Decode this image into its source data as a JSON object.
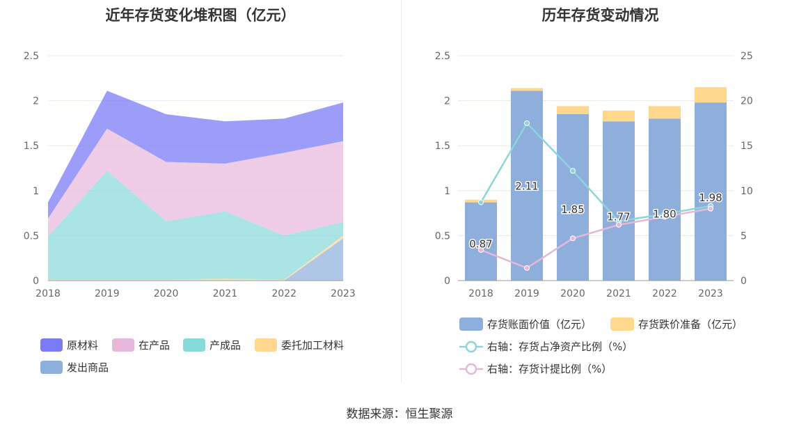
{
  "chart_data": [
    {
      "type": "area",
      "title": "近年存货变化堆积图（亿元）",
      "categories": [
        "2018",
        "2019",
        "2020",
        "2021",
        "2022",
        "2023"
      ],
      "ylim": [
        0,
        2.5
      ],
      "yticks": [
        "0",
        "0.5",
        "1",
        "1.5",
        "2",
        "2.5"
      ],
      "stacked": true,
      "series": [
        {
          "name": "发出商品",
          "color": "#8eaedc",
          "values": [
            0,
            0,
            0,
            0,
            0,
            0.47
          ]
        },
        {
          "name": "委托加工材料",
          "color": "#ffd88e",
          "values": [
            0.01,
            0.01,
            0.01,
            0.02,
            0.01,
            0.03
          ]
        },
        {
          "name": "产成品",
          "color": "#88d9d9",
          "values": [
            0.48,
            1.21,
            0.65,
            0.75,
            0.49,
            0.15
          ]
        },
        {
          "name": "在产品",
          "color": "#e8b8dc",
          "values": [
            0.2,
            0.47,
            0.66,
            0.53,
            0.92,
            0.9
          ]
        },
        {
          "name": "原材料",
          "color": "#7b7cf5",
          "values": [
            0.18,
            0.42,
            0.53,
            0.47,
            0.38,
            0.43
          ]
        }
      ],
      "legend": [
        "原材料",
        "在产品",
        "产成品",
        "委托加工材料",
        "发出商品"
      ]
    },
    {
      "type": "bar",
      "title": "历年存货变动情况",
      "categories": [
        "2018",
        "2019",
        "2020",
        "2021",
        "2022",
        "2023"
      ],
      "ylim": [
        0,
        2.5
      ],
      "yticks": [
        "0",
        "0.5",
        "1",
        "1.5",
        "2",
        "2.5"
      ],
      "y2lim": [
        0,
        25
      ],
      "y2ticks": [
        "0",
        "5",
        "10",
        "15",
        "20",
        "25"
      ],
      "series": [
        {
          "name": "存货账面价值（亿元）",
          "kind": "bar",
          "color": "#8eaedc",
          "values": [
            0.87,
            2.11,
            1.85,
            1.77,
            1.8,
            1.98
          ],
          "labels": [
            "0.87",
            "2.11",
            "1.85",
            "1.77",
            "1.80",
            "1.98"
          ]
        },
        {
          "name": "存货跌价准备（亿元）",
          "kind": "bar",
          "color": "#ffd88e",
          "values": [
            0.03,
            0.03,
            0.09,
            0.12,
            0.14,
            0.17
          ]
        },
        {
          "name": "右轴：存货占净资产比例（%）",
          "kind": "line",
          "color": "#8cd5d9",
          "values": [
            8.7,
            17.5,
            12.2,
            6.6,
            7.4,
            8.3
          ]
        },
        {
          "name": "右轴：存货计提比例（%）",
          "kind": "line",
          "color": "#e6b8d8",
          "values": [
            3.4,
            1.4,
            4.7,
            6.2,
            7.1,
            8.0
          ]
        }
      ]
    }
  ],
  "footer": {
    "source": "数据来源：恒生聚源"
  }
}
